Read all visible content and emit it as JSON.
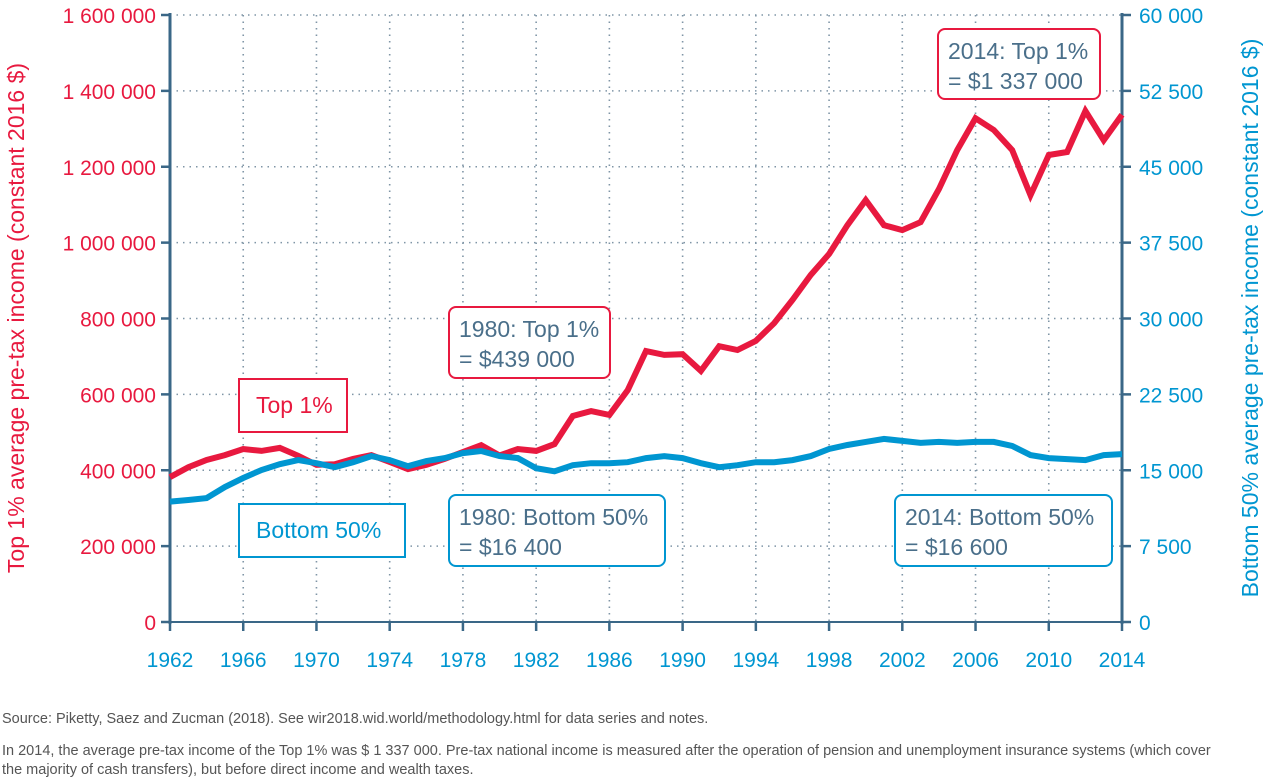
{
  "chart_data": {
    "type": "line",
    "x": [
      1962,
      1963,
      1964,
      1965,
      1966,
      1967,
      1968,
      1969,
      1970,
      1971,
      1972,
      1973,
      1974,
      1975,
      1976,
      1977,
      1978,
      1979,
      1980,
      1981,
      1982,
      1983,
      1984,
      1985,
      1986,
      1987,
      1988,
      1989,
      1990,
      1991,
      1992,
      1993,
      1994,
      1995,
      1996,
      1997,
      1998,
      1999,
      2000,
      2001,
      2002,
      2003,
      2004,
      2005,
      2006,
      2007,
      2008,
      2009,
      2010,
      2011,
      2012,
      2013,
      2014
    ],
    "series": [
      {
        "name": "Top 1%",
        "axis": "left",
        "color": "#e8193f",
        "values": [
          382000,
          408000,
          427000,
          440000,
          456000,
          451000,
          459000,
          438000,
          414000,
          416000,
          430000,
          440000,
          422000,
          403000,
          414000,
          430000,
          448000,
          466000,
          439000,
          456000,
          451000,
          469000,
          543000,
          556000,
          546000,
          611000,
          714000,
          704000,
          706000,
          662000,
          727000,
          717000,
          741000,
          788000,
          849000,
          915000,
          970000,
          1046000,
          1112000,
          1046000,
          1033000,
          1054000,
          1141000,
          1244000,
          1328000,
          1297000,
          1244000,
          1125000,
          1231000,
          1239000,
          1347000,
          1270000,
          1337000
        ]
      },
      {
        "name": "Bottom 50%",
        "axis": "right",
        "color": "#0096d1",
        "values": [
          11900,
          12060,
          12250,
          13340,
          14230,
          15020,
          15600,
          16000,
          15700,
          15300,
          15800,
          16400,
          16000,
          15400,
          15900,
          16200,
          16700,
          16900,
          16400,
          16200,
          15200,
          14900,
          15500,
          15700,
          15700,
          15800,
          16200,
          16400,
          16200,
          15700,
          15300,
          15500,
          15800,
          15800,
          16000,
          16400,
          17100,
          17500,
          17800,
          18100,
          17900,
          17700,
          17800,
          17700,
          17800,
          17800,
          17400,
          16500,
          16200,
          16100,
          16000,
          16500,
          16600
        ]
      }
    ],
    "xlabel": "",
    "ylabel_left": "Top 1% average pre-tax income (constant 2016 $)",
    "ylabel_right": "Bottom 50% average pre-tax income (constant 2016 $)",
    "xlim": [
      1962,
      2014
    ],
    "ylim_left": [
      0,
      1600000
    ],
    "ylim_right": [
      0,
      60000
    ],
    "x_ticks": [
      "1962",
      "1966",
      "1970",
      "1974",
      "1978",
      "1982",
      "1986",
      "1990",
      "1994",
      "1998",
      "2002",
      "2006",
      "2010",
      "2014"
    ],
    "y_ticks_left": [
      "0",
      "200 000",
      "400 000",
      "600 000",
      "800 000",
      "1 000 000",
      "1 200 000",
      "1 400 000",
      "1 600 000"
    ],
    "y_ticks_right": [
      "0",
      "7 500",
      "15 000",
      "22 500",
      "30 000",
      "37 500",
      "45 000",
      "52 500",
      "60 000"
    ],
    "grid": true,
    "annotations": {
      "legend_top": "Top 1%",
      "legend_bottom": "Bottom 50%",
      "top_1980": [
        "1980: Top 1%",
        "= $439 000"
      ],
      "bottom_1980": [
        "1980: Bottom 50%",
        "= $16 400"
      ],
      "top_2014": [
        "2014: Top 1%",
        "= $1 337 000"
      ],
      "bottom_2014": [
        "2014: Bottom 50%",
        "= $16 600"
      ]
    }
  },
  "colors": {
    "top": "#e8193f",
    "bottom": "#0096d1",
    "axis": "#3a6787",
    "annotation_text": "#4a6f8a"
  },
  "footer": {
    "source": "Source: Piketty, Saez and Zucman (2018). See wir2018.wid.world/methodology.html for data series and notes.",
    "note": "In 2014, the average pre-tax income of the Top 1% was $ 1 337 000. Pre-tax national income is measured after the operation of pension and unemployment insurance systems (which cover the majority of cash transfers), but before direct income and wealth taxes."
  }
}
